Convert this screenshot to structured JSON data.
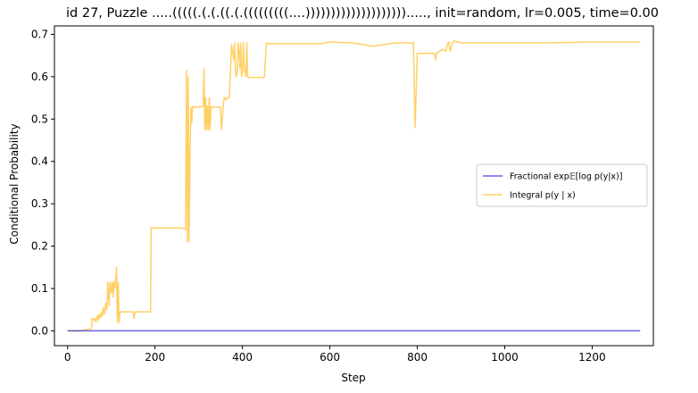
{
  "chart_data": {
    "type": "line",
    "title": "id 27, Puzzle .....(((((.(.(.((.(.(((((((((....))))))))))))))))))))....., init=random, lr=0.005, time=0.00",
    "xlabel": "Step",
    "ylabel": "Conditional Probability",
    "xlim": [
      -30,
      1340
    ],
    "ylim": [
      -0.035,
      0.72
    ],
    "xticks": [
      0,
      200,
      400,
      600,
      800,
      1000,
      1200
    ],
    "yticks": [
      0.0,
      0.1,
      0.2,
      0.3,
      0.4,
      0.5,
      0.6,
      0.7
    ],
    "xtick_labels": [
      "0",
      "200",
      "400",
      "600",
      "800",
      "1000",
      "1200"
    ],
    "ytick_labels": [
      "0.0",
      "0.1",
      "0.2",
      "0.3",
      "0.4",
      "0.5",
      "0.6",
      "0.7"
    ],
    "legend_position": "center-right",
    "grid": false,
    "series": [
      {
        "name": "Fractional exp𝔼[log p(y|x)]",
        "color": "#0000dd",
        "x": [
          0,
          1310
        ],
        "y": [
          0.0,
          0.0
        ]
      },
      {
        "name": "Integral p(y | x)",
        "color": "#ffb000",
        "x": [
          0,
          30,
          55,
          56,
          60,
          62,
          65,
          68,
          70,
          72,
          75,
          78,
          80,
          82,
          85,
          87,
          90,
          92,
          95,
          97,
          100,
          102,
          104,
          106,
          108,
          110,
          112,
          114,
          116,
          118,
          120,
          122,
          125,
          150,
          152,
          155,
          160,
          170,
          180,
          190,
          191,
          260,
          270,
          272,
          274,
          276,
          278,
          280,
          282,
          284,
          286,
          288,
          290,
          300,
          310,
          312,
          314,
          316,
          318,
          320,
          322,
          324,
          326,
          328,
          330,
          340,
          350,
          352,
          354,
          356,
          358,
          360,
          362,
          364,
          366,
          368,
          370,
          375,
          380,
          382,
          384,
          386,
          388,
          390,
          392,
          394,
          396,
          398,
          400,
          402,
          404,
          406,
          408,
          410,
          412,
          414,
          416,
          418,
          420,
          430,
          440,
          450,
          455,
          460,
          500,
          550,
          580,
          590,
          595,
          600,
          650,
          700,
          750,
          780,
          790,
          791,
          795,
          800,
          801,
          820,
          830,
          840,
          842,
          844,
          850,
          860,
          865,
          870,
          872,
          875,
          880,
          885,
          890,
          895,
          900,
          1000,
          1100,
          1200,
          1310
        ],
        "y": [
          0.0,
          0.0,
          0.005,
          0.03,
          0.025,
          0.03,
          0.02,
          0.035,
          0.025,
          0.04,
          0.03,
          0.045,
          0.035,
          0.055,
          0.04,
          0.065,
          0.05,
          0.115,
          0.06,
          0.115,
          0.09,
          0.115,
          0.08,
          0.115,
          0.1,
          0.12,
          0.15,
          0.02,
          0.115,
          0.02,
          0.045,
          0.045,
          0.045,
          0.045,
          0.03,
          0.045,
          0.045,
          0.045,
          0.045,
          0.045,
          0.243,
          0.243,
          0.24,
          0.615,
          0.21,
          0.6,
          0.21,
          0.4,
          0.528,
          0.49,
          0.53,
          0.528,
          0.528,
          0.528,
          0.53,
          0.62,
          0.475,
          0.55,
          0.475,
          0.53,
          0.475,
          0.55,
          0.475,
          0.53,
          0.528,
          0.528,
          0.528,
          0.475,
          0.505,
          0.53,
          0.55,
          0.55,
          0.545,
          0.55,
          0.55,
          0.55,
          0.55,
          0.675,
          0.64,
          0.68,
          0.61,
          0.6,
          0.61,
          0.68,
          0.66,
          0.62,
          0.68,
          0.6,
          0.61,
          0.68,
          0.62,
          0.61,
          0.6,
          0.68,
          0.6,
          0.598,
          0.598,
          0.598,
          0.598,
          0.598,
          0.598,
          0.598,
          0.68,
          0.678,
          0.678,
          0.678,
          0.678,
          0.68,
          0.682,
          0.682,
          0.68,
          0.672,
          0.68,
          0.68,
          0.678,
          0.682,
          0.48,
          0.655,
          0.655,
          0.655,
          0.655,
          0.655,
          0.64,
          0.655,
          0.66,
          0.665,
          0.66,
          0.68,
          0.682,
          0.66,
          0.678,
          0.685,
          0.682,
          0.682,
          0.68,
          0.68,
          0.68,
          0.682,
          0.682
        ]
      }
    ]
  }
}
